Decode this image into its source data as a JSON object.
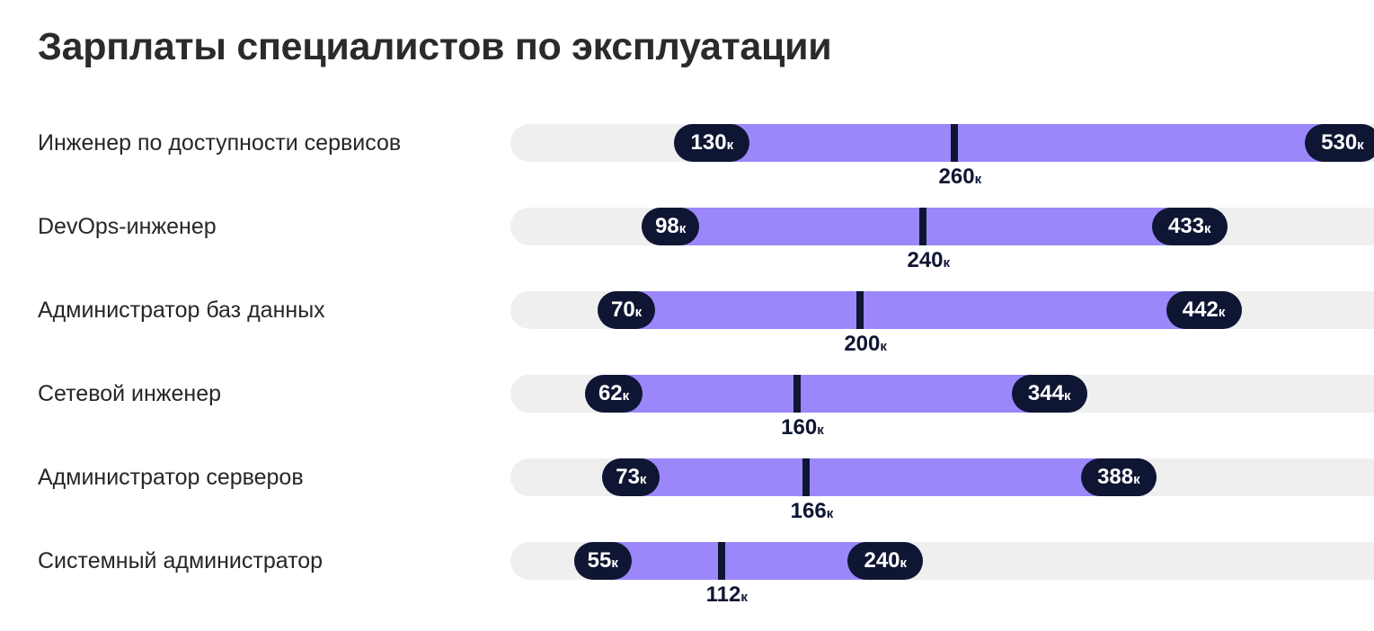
{
  "title": "Зарплаты специалистов по эксплуатации",
  "unit_suffix": "к",
  "chart_data": {
    "type": "range-bar",
    "title": "Зарплаты специалистов по эксплуатации",
    "value_unit": "к",
    "rows": [
      {
        "label": "Инженер по доступности сервисов",
        "min": 130,
        "median": 260,
        "max": 530
      },
      {
        "label": "DevOps-инженер",
        "min": 98,
        "median": 240,
        "max": 433
      },
      {
        "label": "Администратор баз данных",
        "min": 70,
        "median": 200,
        "max": 442
      },
      {
        "label": "Сетевой инженер",
        "min": 62,
        "median": 160,
        "max": 344
      },
      {
        "label": "Администратор серверов",
        "min": 73,
        "median": 166,
        "max": 388
      },
      {
        "label": "Системный администратор",
        "min": 55,
        "median": 112,
        "max": 240
      }
    ]
  },
  "colors": {
    "track": "#efefef",
    "range": "#9b87fa",
    "pill": "#0f1633",
    "median": "#0f1633"
  }
}
